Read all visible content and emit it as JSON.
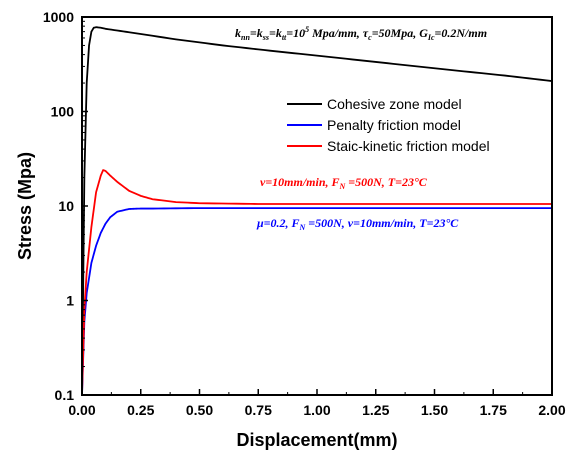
{
  "chart_data": {
    "type": "line",
    "xlabel": "Displacement(mm)",
    "ylabel": "Stress (Mpa)",
    "xlim": [
      0,
      2
    ],
    "ylim": [
      0.1,
      1000
    ],
    "yscale": "log",
    "x_ticks": [
      "0.00",
      "0.25",
      "0.50",
      "0.75",
      "1.00",
      "1.25",
      "1.50",
      "1.75",
      "2.00"
    ],
    "y_ticks": [
      "0.1",
      "1",
      "10",
      "100",
      "1000"
    ],
    "legend_position": "upper-center",
    "colors": {
      "cohesive": "#000000",
      "penalty": "#0000ff",
      "static_kinetic": "#ff0000"
    },
    "series": [
      {
        "name": "Cohesive zone model",
        "color": "#000000",
        "x": [
          0.0,
          0.01,
          0.02,
          0.03,
          0.04,
          0.05,
          0.06,
          0.08,
          0.1,
          0.2,
          0.4,
          0.6,
          0.8,
          1.0,
          1.2,
          1.4,
          1.6,
          1.8,
          2.0
        ],
        "y": [
          0.1,
          20,
          200,
          500,
          700,
          770,
          780,
          770,
          750,
          690,
          580,
          500,
          440,
          390,
          345,
          305,
          270,
          240,
          210
        ]
      },
      {
        "name": "Penalty friction model",
        "color": "#0000ff",
        "x": [
          0.0,
          0.01,
          0.02,
          0.04,
          0.06,
          0.08,
          0.1,
          0.12,
          0.15,
          0.2,
          0.25,
          0.3,
          0.5,
          1.0,
          1.5,
          2.0
        ],
        "y": [
          0.1,
          0.6,
          1.2,
          2.5,
          3.8,
          5.2,
          6.5,
          7.6,
          8.7,
          9.3,
          9.4,
          9.4,
          9.5,
          9.5,
          9.5,
          9.5
        ]
      },
      {
        "name": "Staic-kinetic friction model",
        "color": "#ff0000",
        "x": [
          0.0,
          0.01,
          0.02,
          0.04,
          0.06,
          0.08,
          0.09,
          0.1,
          0.12,
          0.15,
          0.2,
          0.25,
          0.3,
          0.4,
          0.5,
          0.75,
          1.0,
          1.5,
          2.0
        ],
        "y": [
          0.1,
          0.8,
          2.0,
          6.0,
          14,
          21,
          24,
          23.5,
          21,
          18,
          14.5,
          12.8,
          11.8,
          11.0,
          10.7,
          10.5,
          10.5,
          10.5,
          10.5
        ]
      }
    ],
    "annotations": [
      {
        "text": "k_nn=k_ss=k_tt=10^5 Mpa/mm, τ_c=50Mpa, G_Ic=0.2N/mm",
        "color": "#000000"
      },
      {
        "text": "v=10mm/min, F_N=500N, T=23°C",
        "color": "#ff0000"
      },
      {
        "text": "μ=0.2, F_N=500N, v=10mm/min, T=23°C",
        "color": "#0000ff"
      }
    ]
  }
}
